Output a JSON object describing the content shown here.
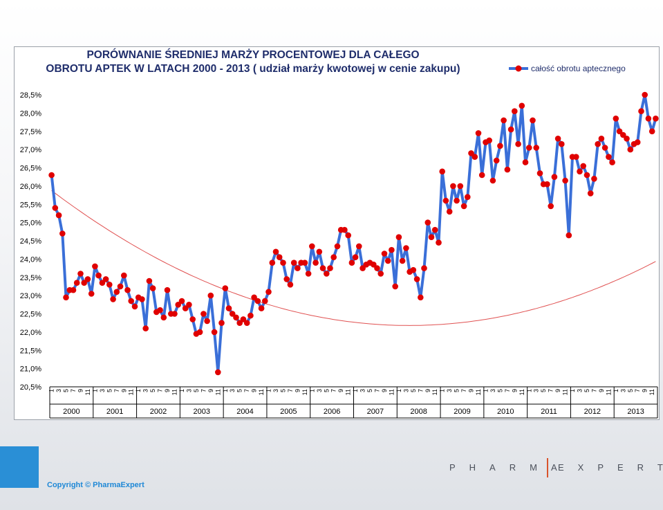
{
  "chart_data": {
    "type": "line",
    "title_lines": [
      "PORÓWNANIE ŚREDNIEJ MARŻY PROCENTOWEJ DLA CAŁEGO",
      "OBROTU  APTEK W LATACH 2000 - 2013 ( udział marży kwotowej w cenie zakupu)"
    ],
    "ylim": [
      20.5,
      28.5
    ],
    "y_ticks": [
      "28,5%",
      "28,0%",
      "27,5%",
      "27,0%",
      "26,5%",
      "26,0%",
      "25,5%",
      "25,0%",
      "24,5%",
      "24,0%",
      "23,5%",
      "23,0%",
      "22,5%",
      "22,0%",
      "21,5%",
      "21,0%",
      "20,5%"
    ],
    "month_ticks": [
      "1",
      "3",
      "5",
      "7",
      "9",
      "11"
    ],
    "years": [
      "2000",
      "2001",
      "2002",
      "2003",
      "2004",
      "2005",
      "2006",
      "2007",
      "2008",
      "2009",
      "2010",
      "2011",
      "2012",
      "2013"
    ],
    "legend_position": "top-right",
    "series": [
      {
        "name": "całość obrotu aptecznego",
        "color": "#3a6fd8",
        "marker_color": "#e00000",
        "values": [
          26.3,
          25.4,
          25.2,
          24.7,
          22.95,
          23.15,
          23.15,
          23.35,
          23.6,
          23.35,
          23.45,
          23.05,
          23.8,
          23.55,
          23.35,
          23.45,
          23.3,
          22.9,
          23.1,
          23.25,
          23.55,
          23.15,
          22.85,
          22.7,
          22.95,
          22.9,
          22.1,
          23.4,
          23.2,
          22.55,
          22.6,
          22.4,
          23.15,
          22.5,
          22.5,
          22.75,
          22.85,
          22.65,
          22.75,
          22.35,
          21.95,
          22.0,
          22.5,
          22.3,
          23.0,
          22.0,
          20.9,
          22.25,
          23.2,
          22.65,
          22.5,
          22.4,
          22.25,
          22.35,
          22.25,
          22.45,
          22.95,
          22.85,
          22.65,
          22.85,
          23.1,
          23.9,
          24.2,
          24.05,
          23.9,
          23.45,
          23.3,
          23.9,
          23.75,
          23.9,
          23.9,
          23.6,
          24.35,
          23.9,
          24.2,
          23.75,
          23.6,
          23.75,
          24.05,
          24.35,
          24.8,
          24.8,
          24.65,
          23.9,
          24.05,
          24.35,
          23.75,
          23.85,
          23.9,
          23.85,
          23.75,
          23.6,
          24.15,
          23.95,
          24.25,
          23.25,
          24.6,
          23.95,
          24.3,
          23.65,
          23.7,
          23.45,
          22.95,
          23.75,
          25.0,
          24.6,
          24.8,
          24.45,
          26.4,
          25.6,
          25.3,
          26.0,
          25.6,
          26.0,
          25.45,
          25.7,
          26.9,
          26.8,
          27.45,
          26.3,
          27.2,
          27.25,
          26.15,
          26.7,
          27.1,
          27.8,
          26.45,
          27.55,
          28.05,
          27.15,
          28.2,
          26.65,
          27.05,
          27.8,
          27.05,
          26.35,
          26.05,
          26.05,
          25.45,
          26.25,
          27.3,
          27.15,
          26.15,
          24.65,
          26.8,
          26.8,
          26.4,
          26.55,
          26.3,
          25.8,
          26.2,
          27.15,
          27.3,
          27.05,
          26.8,
          26.65,
          27.85,
          27.5,
          27.4,
          27.3,
          27.0,
          27.15,
          27.2,
          28.05,
          28.5,
          27.85,
          27.5,
          27.85
        ]
      }
    ],
    "trendline": {
      "color": "#e05050",
      "kind": "polynomial",
      "coefficients": [
        25.876,
        -0.07475,
        0.000378
      ]
    }
  },
  "footer": {
    "copyright": "Copyright © PharmaExpert",
    "brand_left": "PHARMA",
    "brand_right": "EXPERT"
  },
  "colors": {
    "accent_blue": "#2a8fd6",
    "brand_sep": "#d9532b"
  }
}
